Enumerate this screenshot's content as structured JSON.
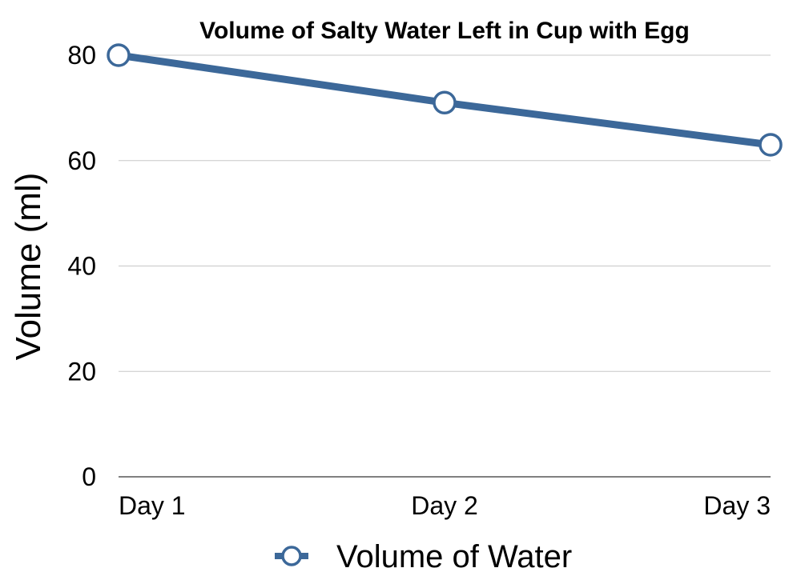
{
  "chart_data": {
    "type": "line",
    "title": "Volume of Salty Water Left in Cup with Egg",
    "ylabel": "Volume (ml)",
    "xlabel": "",
    "categories": [
      "Day 1",
      "Day 2",
      "Day 3"
    ],
    "series": [
      {
        "name": "Volume of Water",
        "values": [
          80,
          71,
          63
        ],
        "color": "#3c6899",
        "marker": "hollow-circle"
      }
    ],
    "ylim": [
      0,
      80
    ],
    "yticks": [
      "0",
      "20",
      "40",
      "60",
      "80"
    ],
    "grid": true,
    "legend": "bottom"
  }
}
